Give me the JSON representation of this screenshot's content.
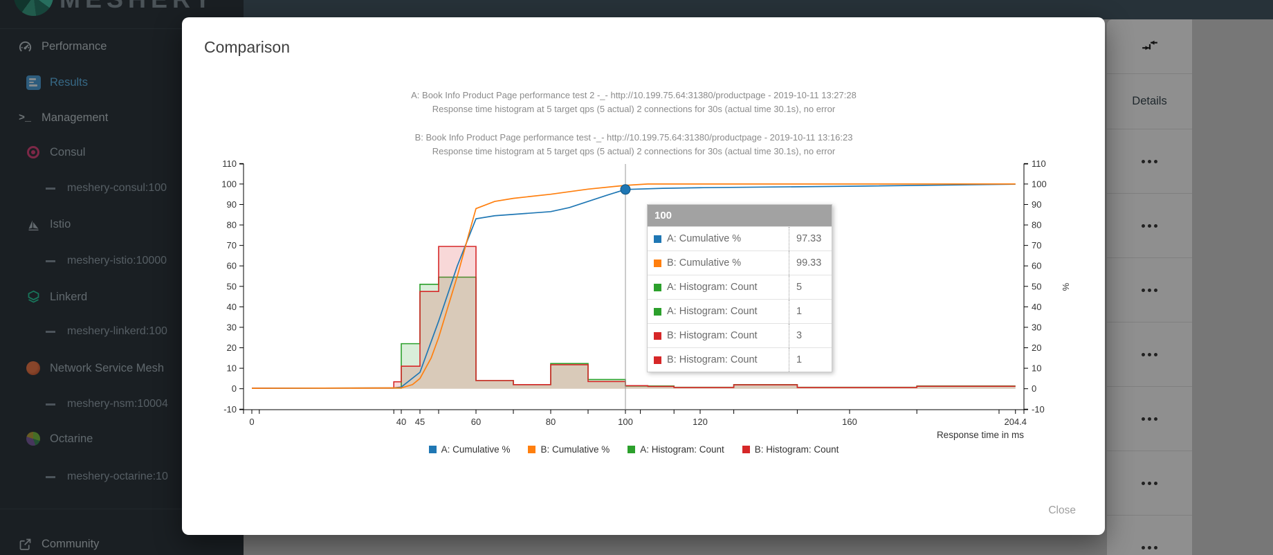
{
  "sidebar": {
    "brand": "MESHERY",
    "items": [
      {
        "label": "Performance",
        "icon": "speedometer-icon",
        "level": "top",
        "active": false
      },
      {
        "label": "Results",
        "icon": "results-icon",
        "level": "child",
        "active": true
      },
      {
        "label": "Management",
        "icon": "terminal-icon",
        "level": "top",
        "active": false
      },
      {
        "label": "Consul",
        "icon": "consul-icon",
        "level": "mesh",
        "active": false
      },
      {
        "label": "meshery-consul:100",
        "icon": "dash-icon",
        "level": "adapter",
        "active": false
      },
      {
        "label": "Istio",
        "icon": "istio-icon",
        "level": "mesh",
        "active": false
      },
      {
        "label": "meshery-istio:10000",
        "icon": "dash-icon",
        "level": "adapter",
        "active": false
      },
      {
        "label": "Linkerd",
        "icon": "linkerd-icon",
        "level": "mesh",
        "active": false
      },
      {
        "label": "meshery-linkerd:100",
        "icon": "dash-icon",
        "level": "adapter",
        "active": false
      },
      {
        "label": "Network Service Mesh",
        "icon": "nsm-icon",
        "level": "mesh",
        "active": false
      },
      {
        "label": "meshery-nsm:10004",
        "icon": "dash-icon",
        "level": "adapter",
        "active": false
      },
      {
        "label": "Octarine",
        "icon": "octarine-icon",
        "level": "mesh",
        "active": false
      },
      {
        "label": "meshery-octarine:10",
        "icon": "dash-icon",
        "level": "adapter",
        "active": false
      }
    ],
    "footer_item": {
      "label": "Community",
      "icon": "external-link-icon"
    }
  },
  "results_panel": {
    "column_header": "Details",
    "row_count": 7,
    "toolbar_icon": "compare-collapse-icon",
    "row_action_icon": "more-options-icon"
  },
  "modal": {
    "title": "Comparison",
    "close_label": "Close"
  },
  "chart_data": {
    "type": "line+step-area-histogram",
    "titles": [
      "A: Book Info Product Page performance test 2 -_- http://10.199.75.64:31380/productpage - 2019-10-11 13:27:28",
      "Response time histogram at 5 target qps (5 actual) 2 connections for 30s (actual time 30.1s), no error",
      "B: Book Info Product Page performance test -_- http://10.199.75.64:31380/productpage - 2019-10-11 13:16:23",
      "Response time histogram at 5 target qps (5 actual) 2 connections for 30s (actual time 30.1s), no error"
    ],
    "xlabel": "Response time in ms",
    "right_axis_label": "%",
    "xlim": [
      0,
      204.4
    ],
    "ylim": [
      -10,
      110
    ],
    "grid": false,
    "legend_position": "bottom",
    "x_ticks_labeled": [
      {
        "v": 0,
        "t": "0"
      },
      {
        "v": 40,
        "t": "40"
      },
      {
        "v": 45,
        "t": "45"
      },
      {
        "v": 60,
        "t": "60"
      },
      {
        "v": 80,
        "t": "80"
      },
      {
        "v": 100,
        "t": "100"
      },
      {
        "v": 120,
        "t": "120"
      },
      {
        "v": 160,
        "t": "160"
      },
      {
        "v": 204.4,
        "t": "204.4"
      }
    ],
    "x_ticks_minor": [
      0,
      2,
      38,
      40,
      45,
      50,
      60,
      70,
      80,
      90,
      100,
      104,
      113,
      120,
      129,
      146,
      160,
      178,
      200,
      204.4
    ],
    "y_ticks": [
      -10,
      0,
      10,
      20,
      30,
      40,
      50,
      60,
      70,
      80,
      90,
      100,
      110
    ],
    "histogram": {
      "bucket_boundaries": [
        0,
        38,
        40,
        45,
        50,
        60,
        70,
        80,
        90,
        100,
        106,
        113,
        129,
        146,
        178,
        204.4
      ],
      "series": [
        {
          "name": "A: Histogram: Count",
          "color": "#2ca02c",
          "counts": [
            0.3,
            0.3,
            22,
            51,
            54.5,
            4,
            2,
            12.3,
            4.5,
            1.3,
            1.3,
            0.7,
            2,
            0.7,
            1.3
          ]
        },
        {
          "name": "B: Histogram: Count",
          "color": "#d62728",
          "counts": [
            0.3,
            3.4,
            11,
            47.5,
            69.5,
            4,
            2,
            11.7,
            3.5,
            1.5,
            1.1,
            0.6,
            1.9,
            0.6,
            1.2
          ]
        }
      ]
    },
    "cumulative": {
      "series": [
        {
          "name": "A: Cumulative %",
          "color": "#1f77b4",
          "points": [
            [
              0,
              0.2
            ],
            [
              38,
              0.4
            ],
            [
              40,
              0.8
            ],
            [
              45,
              8
            ],
            [
              50,
              33
            ],
            [
              55,
              60
            ],
            [
              60,
              83
            ],
            [
              65,
              84.5
            ],
            [
              80,
              86.5
            ],
            [
              85,
              88.5
            ],
            [
              90,
              91.5
            ],
            [
              95,
              94.5
            ],
            [
              100,
              97.33
            ],
            [
              110,
              97.9
            ],
            [
              120,
              98.2
            ],
            [
              160,
              98.9
            ],
            [
              204.4,
              99.9
            ]
          ]
        },
        {
          "name": "B: Cumulative %",
          "color": "#ff7f0e",
          "points": [
            [
              0,
              0.2
            ],
            [
              40,
              0.4
            ],
            [
              43,
              2
            ],
            [
              45,
              5
            ],
            [
              48,
              15
            ],
            [
              50,
              25
            ],
            [
              55,
              55
            ],
            [
              58,
              75
            ],
            [
              60,
              88
            ],
            [
              65,
              91.5
            ],
            [
              70,
              93
            ],
            [
              80,
              95
            ],
            [
              90,
              97.5
            ],
            [
              100,
              99.33
            ],
            [
              106,
              100
            ],
            [
              204.4,
              100
            ]
          ]
        }
      ]
    },
    "marker": {
      "series": "A: Cumulative %",
      "x": 100,
      "y": 97.33,
      "color": "#1f77b4"
    },
    "crosshair_x": 100,
    "legend": [
      {
        "label": "A: Cumulative %",
        "color": "#1f77b4"
      },
      {
        "label": "B: Cumulative %",
        "color": "#ff7f0e"
      },
      {
        "label": "A: Histogram: Count",
        "color": "#2ca02c"
      },
      {
        "label": "B: Histogram: Count",
        "color": "#d62728"
      }
    ],
    "tooltip": {
      "header": "100",
      "rows": [
        {
          "color": "#1f77b4",
          "label": "A: Cumulative %",
          "value": "97.33"
        },
        {
          "color": "#ff7f0e",
          "label": "B: Cumulative %",
          "value": "99.33"
        },
        {
          "color": "#2ca02c",
          "label": "A: Histogram: Count",
          "value": "5"
        },
        {
          "color": "#2ca02c",
          "label": "A: Histogram: Count",
          "value": "1"
        },
        {
          "color": "#d62728",
          "label": "B: Histogram: Count",
          "value": "3"
        },
        {
          "color": "#d62728",
          "label": "B: Histogram: Count",
          "value": "1"
        }
      ]
    }
  }
}
